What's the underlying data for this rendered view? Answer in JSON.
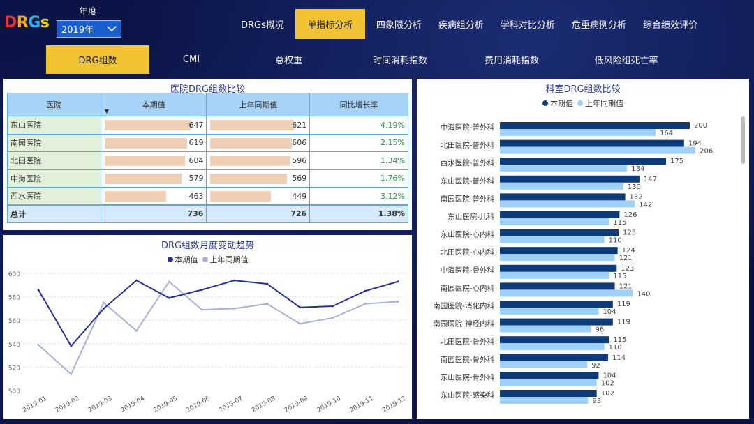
{
  "logo": [
    "D",
    "R",
    "G",
    "s"
  ],
  "year": {
    "label": "年度",
    "value": "2019年"
  },
  "topnav": [
    "DRGs概况",
    "单指标分析",
    "四象限分析",
    "疾病组分析",
    "学科对比分析",
    "危重病例分析",
    "综合绩效评价"
  ],
  "topnav_active": 1,
  "subnav": [
    "DRG组数",
    "CMI",
    "总权重",
    "时间消耗指数",
    "费用消耗指数",
    "低风险组死亡率"
  ],
  "subnav_active": 0,
  "colors": {
    "bg": "#0b1446",
    "active": "#f1c232",
    "dark_series": "#0d3b7a",
    "light_series": "#9fd0f8",
    "line_cur": "#28309a",
    "line_prev": "#a9b0dc",
    "bar_fill": "#efcfb6",
    "growth": "#2c9a4a"
  },
  "hospital_table": {
    "title": "医院DRG组数比较",
    "headers": [
      "医院",
      "本期值",
      "上年同期值",
      "同比增长率"
    ],
    "rows": [
      {
        "name": "东山医院",
        "cur": "647",
        "prev": "621",
        "growth": "4.19%"
      },
      {
        "name": "南园医院",
        "cur": "619",
        "prev": "606",
        "growth": "2.15%"
      },
      {
        "name": "北田医院",
        "cur": "604",
        "prev": "596",
        "growth": "1.34%"
      },
      {
        "name": "中海医院",
        "cur": "579",
        "prev": "569",
        "growth": "1.76%"
      },
      {
        "name": "西水医院",
        "cur": "463",
        "prev": "449",
        "growth": "3.12%"
      }
    ],
    "total": {
      "name": "总计",
      "cur": "736",
      "prev": "726",
      "growth": "1.38%"
    }
  },
  "chart_data": [
    {
      "type": "line",
      "title": "DRG组数月度变动趋势",
      "categories": [
        "2019-01",
        "2019-02",
        "2019-03",
        "2019-04",
        "2019-05",
        "2019-06",
        "2019-07",
        "2019-08",
        "2019-09",
        "2019-10",
        "2019-11",
        "2019-12"
      ],
      "series": [
        {
          "name": "本期值",
          "values": [
            586,
            538,
            570,
            594,
            579,
            586,
            594,
            591,
            571,
            572,
            585,
            593
          ]
        },
        {
          "name": "上年同期值",
          "values": [
            539,
            514,
            575,
            551,
            593,
            569,
            570,
            574,
            557,
            562,
            574,
            576
          ]
        }
      ],
      "ylim": [
        500,
        600
      ],
      "yticks": [
        500,
        520,
        540,
        560,
        580,
        600
      ],
      "grid": true,
      "legend": "top-center"
    },
    {
      "type": "bar",
      "orientation": "horizontal",
      "title": "科室DRG组数比较",
      "categories": [
        "中海医院-普外科",
        "北田医院-普外科",
        "西水医院-普外科",
        "东山医院-普外科",
        "南园医院-普外科",
        "东山医院-儿科",
        "东山医院-心内科",
        "北田医院-心内科",
        "中海医院-骨外科",
        "南园医院-心内科",
        "南园医院-消化内科",
        "南园医院-神经内科",
        "北田医院-骨外科",
        "南园医院-骨外科",
        "东山医院-骨外科",
        "东山医院-感染科"
      ],
      "series": [
        {
          "name": "本期值",
          "values": [
            200,
            194,
            175,
            147,
            132,
            126,
            125,
            124,
            123,
            121,
            119,
            119,
            115,
            114,
            104,
            102
          ]
        },
        {
          "name": "上年同期值",
          "values": [
            164,
            206,
            134,
            130,
            142,
            115,
            110,
            121,
            115,
            140,
            104,
            96,
            110,
            92,
            102,
            93
          ]
        }
      ],
      "legend": "top-center"
    }
  ]
}
